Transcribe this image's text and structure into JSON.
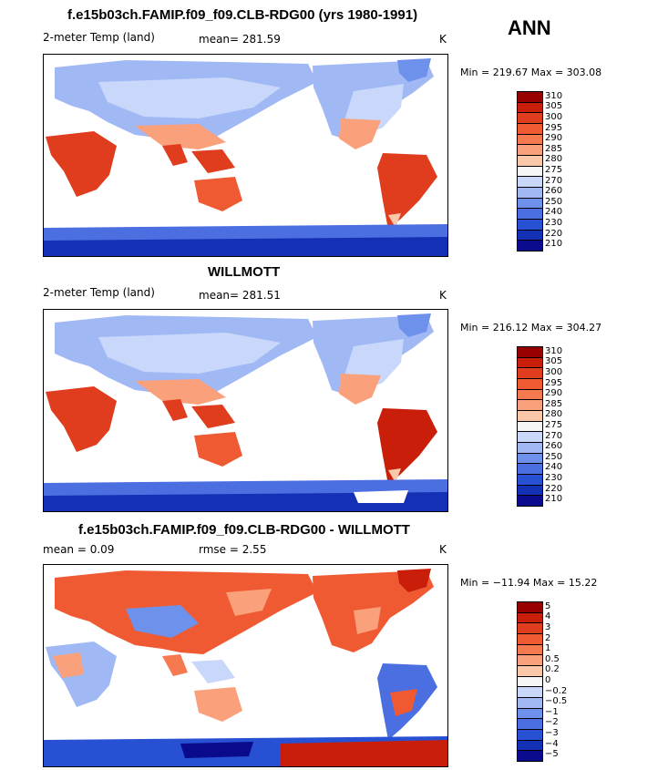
{
  "season": "ANN",
  "panels": [
    {
      "title": "f.e15b03ch.FAMIP.f09_f09.CLB-RDG00 (yrs 1980-1991)",
      "left_label": "2-meter Temp (land)",
      "center_label": "mean= 281.59",
      "units": "K",
      "minmax": "Min = 219.67 Max = 303.08",
      "levels": [
        "310",
        "305",
        "300",
        "295",
        "290",
        "285",
        "280",
        "275",
        "270",
        "260",
        "250",
        "240",
        "230",
        "220",
        "210"
      ],
      "colors": [
        "#960000",
        "#c81e0a",
        "#e03c1e",
        "#f05a32",
        "#f57a50",
        "#faa07a",
        "#fcc8aa",
        "#f5f5f5",
        "#c8d7fa",
        "#a0b9f5",
        "#6e91eb",
        "#4b6ee1",
        "#2850d2",
        "#1430b4",
        "#0a0a8c"
      ]
    },
    {
      "title": "WILLMOTT",
      "left_label": "2-meter Temp (land)",
      "center_label": "mean= 281.51",
      "units": "K",
      "minmax": "Min = 216.12 Max = 304.27",
      "levels": [
        "310",
        "305",
        "300",
        "295",
        "290",
        "285",
        "280",
        "275",
        "270",
        "260",
        "250",
        "240",
        "230",
        "220",
        "210"
      ],
      "colors": [
        "#960000",
        "#c81e0a",
        "#e03c1e",
        "#f05a32",
        "#f57a50",
        "#faa07a",
        "#fcc8aa",
        "#f5f5f5",
        "#c8d7fa",
        "#a0b9f5",
        "#6e91eb",
        "#4b6ee1",
        "#2850d2",
        "#1430b4",
        "#0a0a8c"
      ]
    },
    {
      "title": "f.e15b03ch.FAMIP.f09_f09.CLB-RDG00 - WILLMOTT",
      "left_label": "mean =    0.09",
      "center_label": "rmse =    2.55",
      "units": "K",
      "minmax": "Min = −11.94 Max =  15.22",
      "levels": [
        "5",
        "4",
        "3",
        "2",
        "1",
        "0.5",
        "0.2",
        "0",
        "−0.2",
        "−0.5",
        "−1",
        "−2",
        "−3",
        "−4",
        "−5"
      ],
      "colors": [
        "#960000",
        "#c81e0a",
        "#e03c1e",
        "#f05a32",
        "#f57a50",
        "#faa07a",
        "#fcc8aa",
        "#f5f5f5",
        "#c8d7fa",
        "#a0b9f5",
        "#6e91eb",
        "#4b6ee1",
        "#2850d2",
        "#1430b4",
        "#0a0a8c"
      ]
    }
  ]
}
